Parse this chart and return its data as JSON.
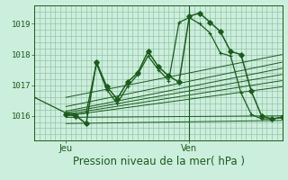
{
  "background_color": "#cceedd",
  "grid_color": "#88bb99",
  "line_color": "#1a5c1a",
  "xlabel": "Pression niveau de la mer( hPa )",
  "xlabel_fontsize": 8.5,
  "ylabel_ticks": [
    1016,
    1017,
    1018,
    1019
  ],
  "ylim": [
    1015.2,
    1019.6
  ],
  "xlim": [
    0,
    48
  ],
  "x_jeu": 6,
  "x_ven": 30,
  "vline_x": 30,
  "main_line_x": [
    6,
    8,
    10,
    12,
    14,
    16,
    18,
    20,
    22,
    24,
    26,
    28,
    30,
    32,
    34,
    36,
    38,
    40,
    42,
    44,
    46,
    48
  ],
  "main_line_y": [
    1016.05,
    1016.0,
    1015.75,
    1017.75,
    1016.95,
    1016.55,
    1017.1,
    1017.4,
    1018.1,
    1017.6,
    1017.3,
    1017.1,
    1019.25,
    1019.35,
    1019.05,
    1018.75,
    1018.1,
    1018.0,
    1016.8,
    1016.0,
    1015.9,
    1015.95
  ],
  "cross_line_x": [
    0,
    6,
    8,
    10,
    12,
    14,
    16,
    18,
    20,
    22,
    24,
    26,
    28,
    30,
    32,
    34,
    36,
    38,
    40,
    42,
    44,
    46,
    48
  ],
  "cross_line_y": [
    1016.6,
    1016.1,
    1016.05,
    1016.1,
    1017.7,
    1016.85,
    1016.4,
    1016.95,
    1017.35,
    1017.95,
    1017.5,
    1017.15,
    1019.05,
    1019.2,
    1019.0,
    1018.7,
    1018.05,
    1017.95,
    1016.75,
    1016.05,
    1015.9,
    1015.9,
    1015.95
  ],
  "ensemble_lines": [
    {
      "x": [
        6,
        48
      ],
      "y": [
        1016.6,
        1018.0
      ]
    },
    {
      "x": [
        6,
        48
      ],
      "y": [
        1016.3,
        1017.75
      ]
    },
    {
      "x": [
        6,
        48
      ],
      "y": [
        1016.15,
        1017.55
      ]
    },
    {
      "x": [
        6,
        48
      ],
      "y": [
        1016.1,
        1017.35
      ]
    },
    {
      "x": [
        6,
        48
      ],
      "y": [
        1016.05,
        1017.15
      ]
    },
    {
      "x": [
        6,
        48
      ],
      "y": [
        1016.0,
        1016.95
      ]
    },
    {
      "x": [
        6,
        48
      ],
      "y": [
        1015.95,
        1016.0
      ]
    },
    {
      "x": [
        6,
        48
      ],
      "y": [
        1015.75,
        1015.85
      ]
    }
  ],
  "ytick_fontsize": 6.5,
  "xtick_fontsize": 7.0
}
